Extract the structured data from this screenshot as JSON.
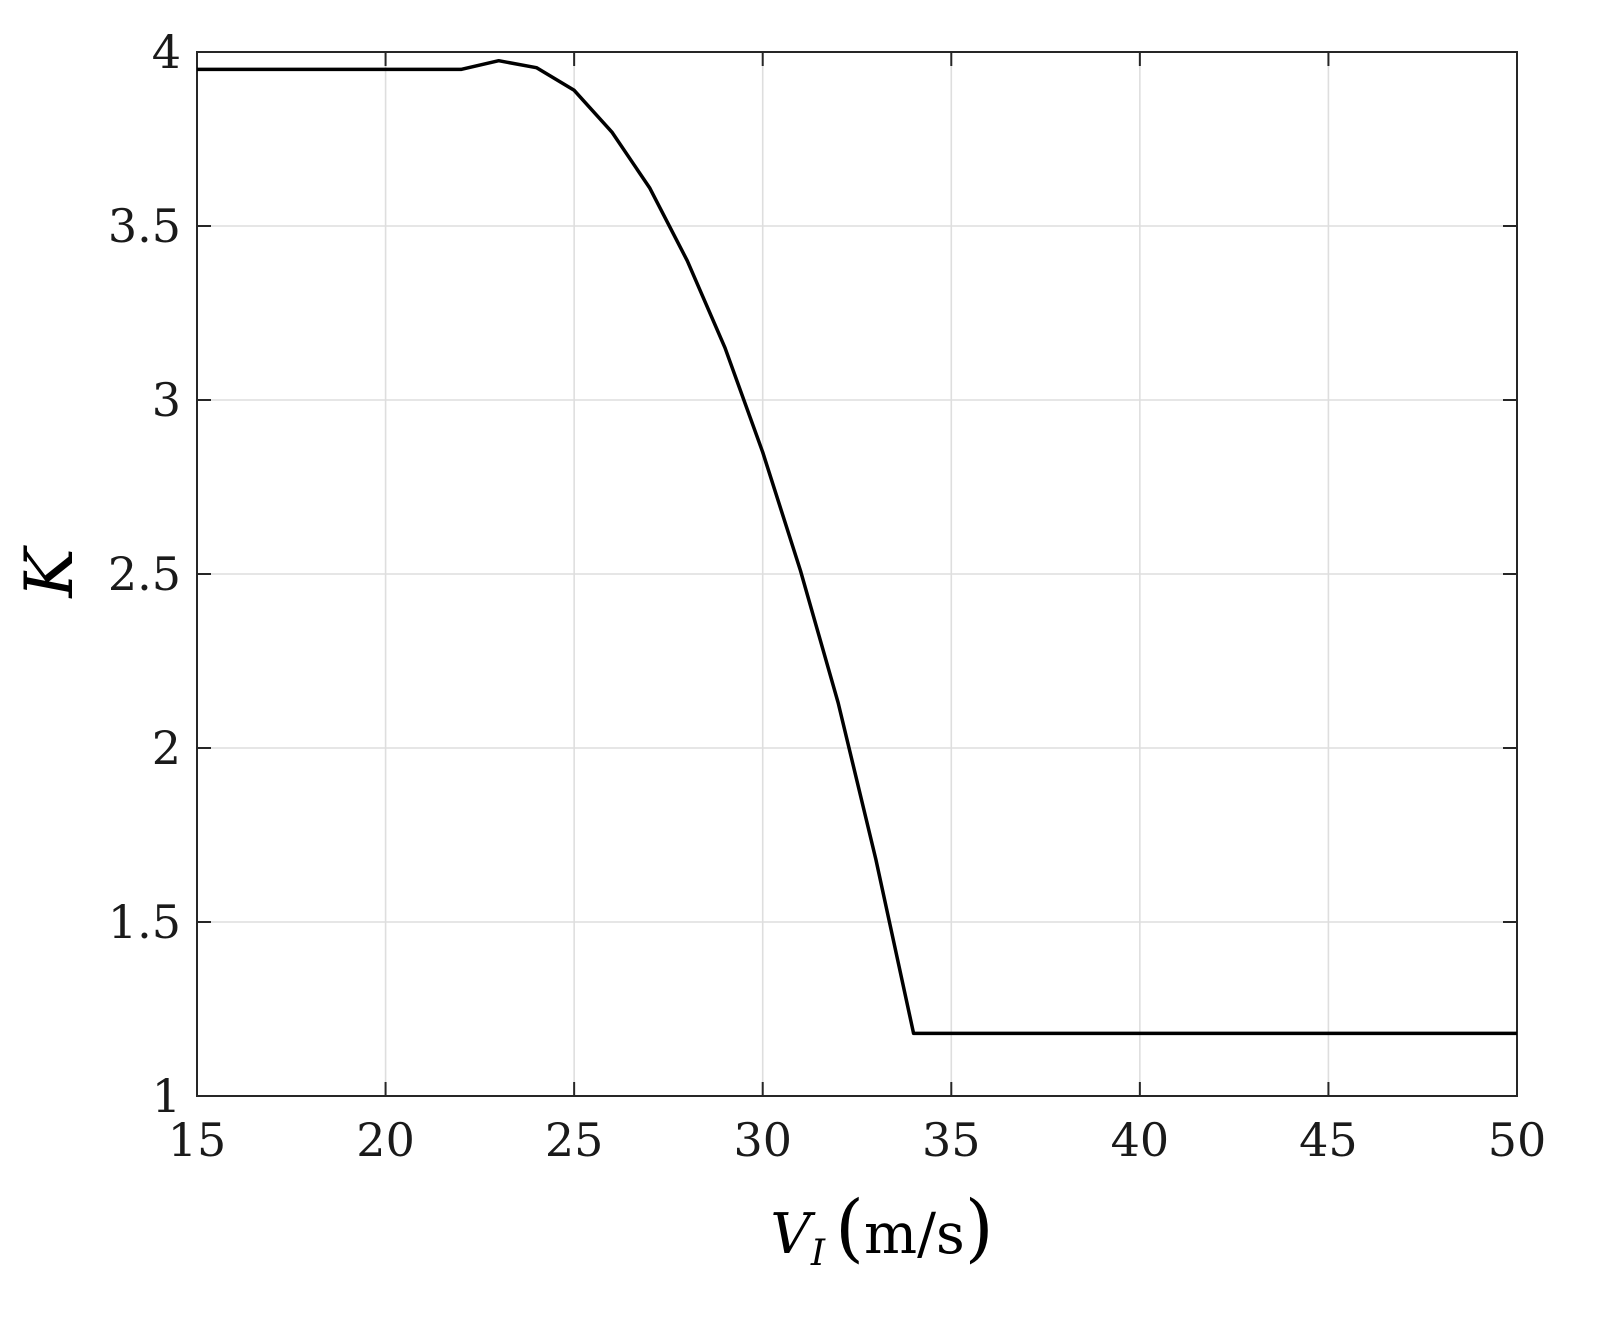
{
  "chart_data": {
    "type": "line",
    "title": "",
    "xlabel": {
      "main": "V",
      "subscript": "I",
      "unit": "m/s"
    },
    "ylabel": "K",
    "xlim": [
      15,
      50
    ],
    "ylim": [
      1,
      4
    ],
    "xticks": [
      15,
      20,
      25,
      30,
      35,
      40,
      45,
      50
    ],
    "xtick_labels": [
      "15",
      "20",
      "25",
      "30",
      "35",
      "40",
      "45",
      "50"
    ],
    "yticks": [
      1,
      1.5,
      2,
      2.5,
      3,
      3.5,
      4
    ],
    "ytick_labels": [
      "1",
      "1.5",
      "2",
      "2.5",
      "3",
      "3.5",
      "4"
    ],
    "grid": true,
    "legend": "none",
    "colors": {
      "line": "#000000",
      "grid": "#dedede",
      "frame": "#262626"
    },
    "series": [
      {
        "x": [
          15,
          22,
          23,
          24,
          25,
          26,
          27,
          28,
          29,
          30,
          31,
          32,
          33,
          34,
          50
        ],
        "y": [
          3.95,
          3.95,
          3.975,
          3.955,
          3.89,
          3.77,
          3.61,
          3.4,
          3.15,
          2.85,
          2.51,
          2.13,
          1.68,
          1.18,
          1.18
        ]
      }
    ]
  }
}
